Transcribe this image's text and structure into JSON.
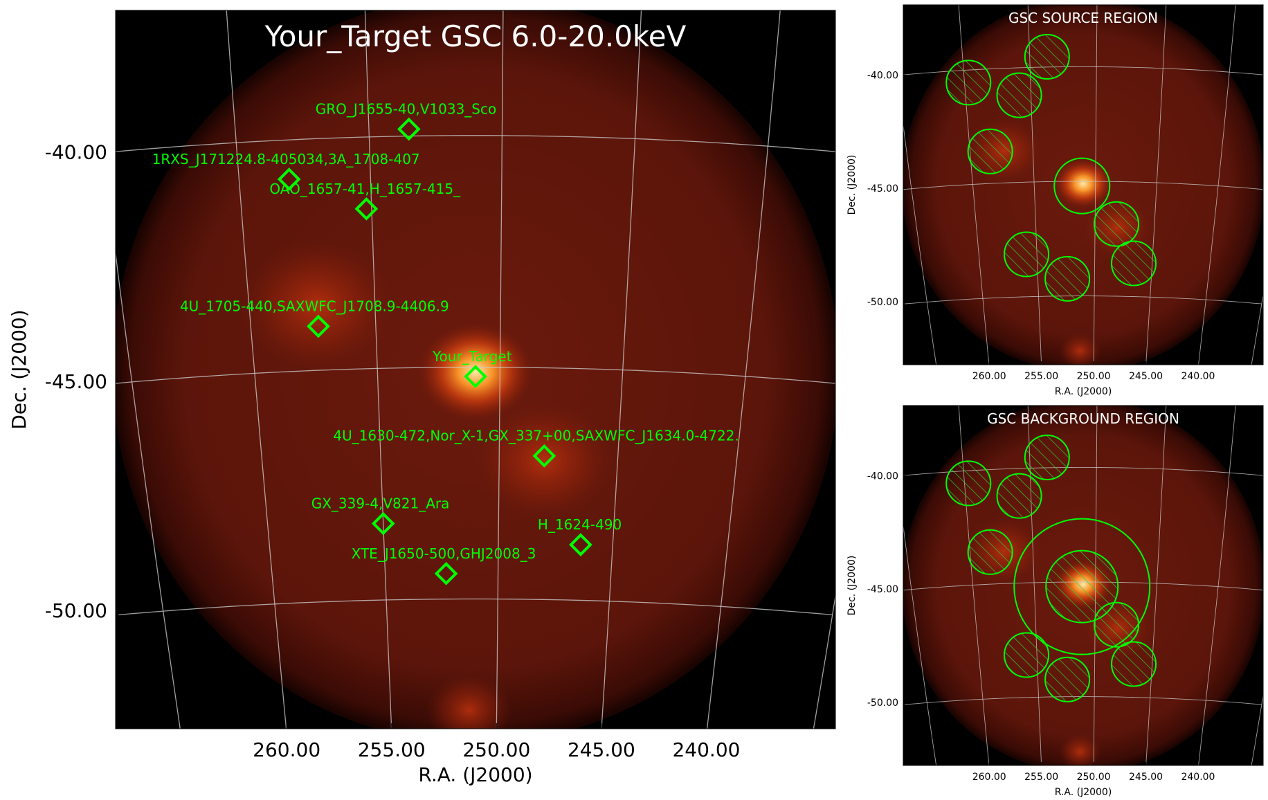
{
  "colors": {
    "background": "#000000",
    "field": "#5a1408",
    "marker": "#00ff00",
    "grid": "#c8c8c8",
    "text": "#000000",
    "title_main": "#ffffff",
    "title_small": "#ffffff"
  },
  "chart_data": [
    {
      "type": "scatter",
      "title": "Your_Target GSC 6.0-20.0keV",
      "xlabel": "R.A. (J2000)",
      "ylabel": "Dec. (J2000)",
      "x_ticks": [
        "260.00",
        "255.00",
        "250.00",
        "245.00",
        "240.00"
      ],
      "y_ticks": [
        "-40.00",
        "-45.00",
        "-50.00"
      ],
      "xlim": [
        265,
        237
      ],
      "ylim": [
        -52.8,
        -37.3
      ],
      "grid": true,
      "sources": [
        {
          "name": "GRO_J1655-40,V1033_Sco",
          "ra": 253.5,
          "dec": -39.85
        },
        {
          "name": "1RXS_J171224.8-405034,3A_1708-407",
          "ra": 258.1,
          "dec": -40.85
        },
        {
          "name": "OAO_1657-41,H_1657-415_",
          "ra": 255.2,
          "dec": -41.55
        },
        {
          "name": "4U_1705-440,SAXWFC_J1708.9-4406.9",
          "ra": 257.3,
          "dec": -44.05
        },
        {
          "name": "Your_Target",
          "ra": 251.0,
          "dec": -45.2
        },
        {
          "name": "4U_1630-472,Nor_X-1,GX_337+00,SAXWFC_J1634.0-4722.",
          "ra": 248.1,
          "dec": -46.9
        },
        {
          "name": "GX_339-4,V821_Ara",
          "ra": 255.0,
          "dec": -48.35
        },
        {
          "name": "H_1624-490",
          "ra": 246.4,
          "dec": -48.8
        },
        {
          "name": "XTE_J1650-500,GHJ2008_3",
          "ra": 252.3,
          "dec": -49.45
        }
      ]
    },
    {
      "type": "scatter",
      "title": "GSC SOURCE REGION",
      "xlabel": "R.A. (J2000)",
      "ylabel": "Dec. (J2000)",
      "x_ticks": [
        "260.00",
        "255.00",
        "250.00",
        "245.00",
        "240.00"
      ],
      "y_ticks": [
        "-40.00",
        "-45.00",
        "-50.00"
      ],
      "xlim": [
        265,
        237
      ],
      "ylim": [
        -53.0,
        -37.3
      ],
      "grid": true,
      "source_region": {
        "ra": 251.1,
        "dec": -45.2
      },
      "excluded_regions": [
        {
          "ra": 253.7,
          "dec": -39.55
        },
        {
          "ra": 259.7,
          "dec": -40.55
        },
        {
          "ra": 255.9,
          "dec": -41.2
        },
        {
          "ra": 258.4,
          "dec": -43.6
        },
        {
          "ra": 248.2,
          "dec": -46.85
        },
        {
          "ra": 246.6,
          "dec": -48.55
        },
        {
          "ra": 255.9,
          "dec": -48.15
        },
        {
          "ra": 252.4,
          "dec": -49.25
        }
      ]
    },
    {
      "type": "scatter",
      "title": "GSC BACKGROUND REGION",
      "xlabel": "R.A. (J2000)",
      "ylabel": "Dec. (J2000)",
      "x_ticks": [
        "260.00",
        "255.00",
        "250.00",
        "245.00",
        "240.00"
      ],
      "y_ticks": [
        "-40.00",
        "-45.00",
        "-50.00"
      ],
      "xlim": [
        265,
        237
      ],
      "ylim": [
        -53.0,
        -37.3
      ],
      "grid": true,
      "background_region": {
        "ra": 251.1,
        "dec": -45.2
      },
      "excluded_regions": [
        {
          "ra": 251.1,
          "dec": -45.2
        },
        {
          "ra": 253.7,
          "dec": -39.55
        },
        {
          "ra": 259.7,
          "dec": -40.55
        },
        {
          "ra": 255.9,
          "dec": -41.2
        },
        {
          "ra": 258.4,
          "dec": -43.6
        },
        {
          "ra": 248.2,
          "dec": -46.85
        },
        {
          "ra": 246.6,
          "dec": -48.55
        },
        {
          "ra": 255.9,
          "dec": -48.15
        },
        {
          "ra": 252.4,
          "dec": -49.25
        }
      ]
    }
  ]
}
